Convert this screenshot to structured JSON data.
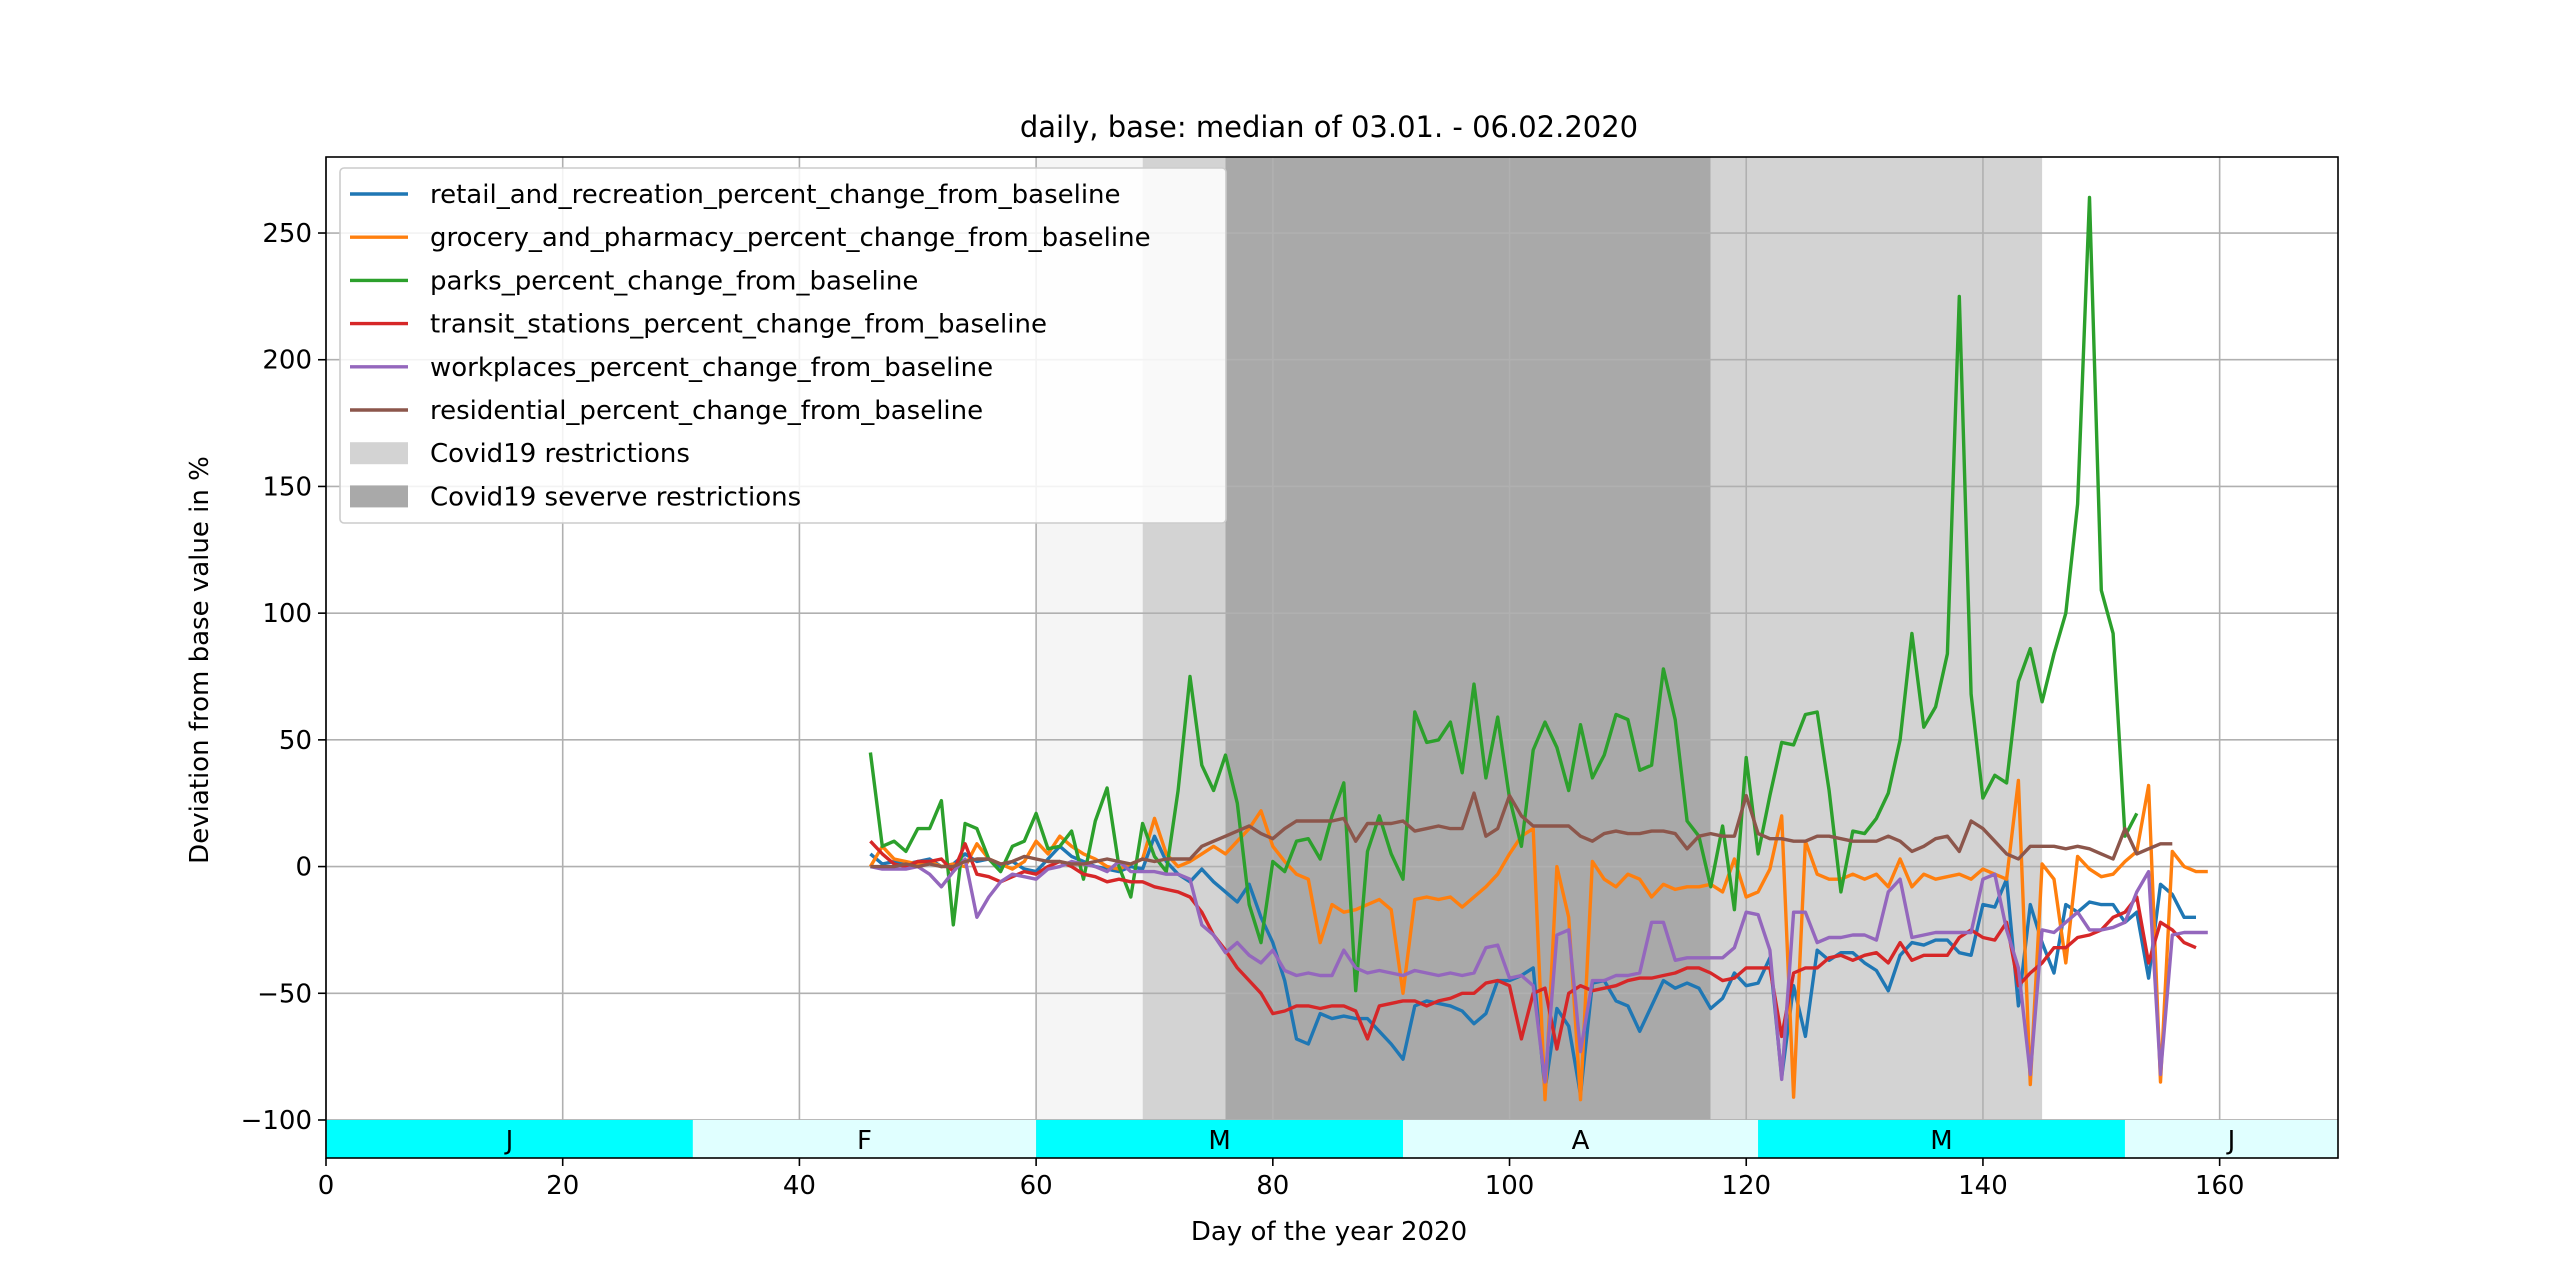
{
  "chart_data": {
    "type": "line",
    "title": "daily, base: median of 03.01. - 06.02.2020",
    "xlabel": "Day of the year 2020",
    "ylabel": "Deviation from base value in %",
    "xlim": [
      0,
      170
    ],
    "ylim": [
      -115,
      280
    ],
    "xticks": [
      0,
      20,
      40,
      60,
      80,
      100,
      120,
      140,
      160
    ],
    "yticks": [
      -100,
      -50,
      0,
      50,
      100,
      150,
      200,
      250
    ],
    "ytick_labels": [
      "−100",
      "−50",
      "0",
      "50",
      "100",
      "150",
      "200",
      "250"
    ],
    "grid": true,
    "legend_position": "top-left",
    "x_start": 46,
    "x_end": 157,
    "series": [
      {
        "name": "retail_and_recreation_percent_change_from_baseline",
        "color": "#1f77b4",
        "values": [
          5,
          1,
          2,
          1,
          2,
          3,
          0,
          1,
          5,
          2,
          3,
          0,
          2,
          -1,
          -2,
          3,
          8,
          4,
          2,
          0,
          -1,
          -2,
          0,
          -1,
          12,
          2,
          -3,
          -6,
          -1,
          -6,
          -10,
          -14,
          -7,
          -20,
          -30,
          -45,
          -68,
          -70,
          -58,
          -60,
          -59,
          -60,
          -60,
          -65,
          -70,
          -76,
          -55,
          -53,
          -54,
          -55,
          -57,
          -62,
          -58,
          -45,
          -45,
          -43,
          -40,
          -88,
          -56,
          -63,
          -90,
          -46,
          -45,
          -53,
          -55,
          -65,
          -55,
          -45,
          -48,
          -46,
          -48,
          -56,
          -52,
          -42,
          -47,
          -46,
          -36,
          -83,
          -47,
          -67,
          -33,
          -37,
          -34,
          -34,
          -38,
          -41,
          -49,
          -35,
          -30,
          -31,
          -29,
          -29,
          -34,
          -35,
          -15,
          -16,
          -5,
          -55,
          -15,
          -30,
          -42,
          -15,
          -18,
          -14,
          -15,
          -15,
          -22,
          -18,
          -44,
          -7,
          -11,
          -20,
          -20
        ]
      },
      {
        "name": "grocery_and_pharmacy_percent_change_from_baseline",
        "color": "#ff7f0e",
        "values": [
          0,
          8,
          3,
          2,
          1,
          2,
          0,
          1,
          0,
          9,
          3,
          1,
          -1,
          2,
          10,
          5,
          12,
          8,
          5,
          3,
          0,
          -1,
          1,
          3,
          19,
          5,
          0,
          2,
          5,
          8,
          5,
          10,
          15,
          22,
          8,
          2,
          -3,
          -5,
          -30,
          -15,
          -18,
          -17,
          -15,
          -13,
          -17,
          -50,
          -13,
          -12,
          -13,
          -12,
          -16,
          -12,
          -8,
          -3,
          5,
          12,
          15,
          -92,
          0,
          -20,
          -92,
          2,
          -5,
          -8,
          -3,
          -5,
          -12,
          -7,
          -9,
          -8,
          -8,
          -7,
          -10,
          3,
          -12,
          -10,
          -1,
          20,
          -91,
          10,
          -3,
          -5,
          -5,
          -3,
          -5,
          -3,
          -8,
          3,
          -8,
          -3,
          -5,
          -4,
          -3,
          -5,
          -1,
          -3,
          -5,
          34,
          -86,
          1,
          -5,
          -38,
          4,
          -1,
          -4,
          -3,
          2,
          6,
          32,
          -85,
          6,
          0,
          -2,
          -2
        ]
      },
      {
        "name": "parks_percent_change_from_baseline",
        "color": "#2ca02c",
        "values": [
          45,
          8,
          10,
          6,
          15,
          15,
          26,
          -23,
          17,
          15,
          3,
          -2,
          8,
          10,
          21,
          7,
          8,
          14,
          -5,
          18,
          31,
          0,
          -12,
          17,
          4,
          -2,
          30,
          75,
          40,
          30,
          44,
          25,
          -15,
          -30,
          2,
          -2,
          10,
          11,
          3,
          20,
          33,
          -49,
          6,
          20,
          5,
          -5,
          61,
          49,
          50,
          57,
          37,
          72,
          35,
          59,
          27,
          8,
          46,
          57,
          47,
          30,
          56,
          35,
          44,
          60,
          58,
          38,
          40,
          78,
          58,
          18,
          12,
          -8,
          16,
          -17,
          43,
          5,
          28,
          49,
          48,
          60,
          61,
          30,
          -10,
          14,
          13,
          19,
          29,
          50,
          92,
          55,
          63,
          84,
          225,
          68,
          27,
          36,
          33,
          73,
          86,
          65,
          84,
          100,
          143,
          264,
          109,
          92,
          12,
          21
        ]
      },
      {
        "name": "transit_stations_percent_change_from_baseline",
        "color": "#d62728",
        "values": [
          10,
          5,
          1,
          0,
          2,
          2,
          3,
          -2,
          9,
          -3,
          -4,
          -6,
          -4,
          -2,
          -3,
          0,
          2,
          0,
          -3,
          -4,
          -6,
          -5,
          -6,
          -6,
          -8,
          -9,
          -10,
          -12,
          -18,
          -27,
          -33,
          -40,
          -45,
          -50,
          -58,
          -57,
          -55,
          -55,
          -56,
          -55,
          -55,
          -57,
          -68,
          -55,
          -54,
          -53,
          -53,
          -55,
          -53,
          -52,
          -50,
          -50,
          -46,
          -45,
          -47,
          -68,
          -50,
          -48,
          -72,
          -50,
          -47,
          -49,
          -48,
          -47,
          -45,
          -44,
          -44,
          -43,
          -42,
          -40,
          -40,
          -42,
          -45,
          -44,
          -40,
          -40,
          -40,
          -67,
          -42,
          -40,
          -40,
          -36,
          -35,
          -37,
          -35,
          -34,
          -38,
          -30,
          -37,
          -35,
          -35,
          -35,
          -28,
          -25,
          -28,
          -29,
          -22,
          -47,
          -42,
          -38,
          -32,
          -32,
          -28,
          -27,
          -25,
          -20,
          -18,
          -12,
          -38,
          -22,
          -25,
          -30,
          -32
        ]
      },
      {
        "name": "workplaces_percent_change_from_baseline",
        "color": "#9467bd",
        "values": [
          0,
          -1,
          -1,
          -1,
          0,
          -3,
          -8,
          -2,
          3,
          -20,
          -12,
          -6,
          -3,
          -4,
          -5,
          -1,
          0,
          2,
          1,
          0,
          -2,
          2,
          -2,
          -2,
          -2,
          -3,
          -3,
          -5,
          -23,
          -27,
          -34,
          -30,
          -35,
          -38,
          -33,
          -41,
          -43,
          -42,
          -43,
          -43,
          -33,
          -40,
          -42,
          -41,
          -42,
          -43,
          -41,
          -42,
          -43,
          -42,
          -43,
          -42,
          -32,
          -31,
          -44,
          -43,
          -47,
          -85,
          -27,
          -25,
          -73,
          -45,
          -45,
          -43,
          -43,
          -42,
          -22,
          -22,
          -37,
          -36,
          -36,
          -36,
          -36,
          -32,
          -18,
          -19,
          -33,
          -84,
          -18,
          -18,
          -30,
          -28,
          -28,
          -27,
          -27,
          -29,
          -10,
          -5,
          -28,
          -27,
          -26,
          -26,
          -26,
          -26,
          -5,
          -3,
          -25,
          -40,
          -82,
          -25,
          -26,
          -22,
          -18,
          -25,
          -25,
          -24,
          -22,
          -10,
          -2,
          -82,
          -27,
          -26,
          -26,
          -26
        ]
      },
      {
        "name": "residential_percent_change_from_baseline",
        "color": "#8c564b",
        "values": [
          0,
          0,
          0,
          1,
          0,
          1,
          0,
          0,
          2,
          3,
          3,
          1,
          2,
          4,
          3,
          2,
          2,
          1,
          1,
          2,
          3,
          2,
          1,
          3,
          2,
          3,
          3,
          3,
          8,
          10,
          12,
          14,
          16,
          13,
          11,
          15,
          18,
          18,
          18,
          18,
          19,
          10,
          17,
          17,
          17,
          18,
          14,
          15,
          16,
          15,
          15,
          29,
          12,
          15,
          28,
          20,
          16,
          16,
          16,
          16,
          12,
          10,
          13,
          14,
          13,
          13,
          14,
          14,
          13,
          7,
          12,
          13,
          12,
          12,
          28,
          13,
          11,
          11,
          10,
          10,
          12,
          12,
          11,
          10,
          10,
          10,
          12,
          10,
          6,
          8,
          11,
          12,
          6,
          18,
          15,
          10,
          5,
          3,
          8,
          8,
          8,
          7,
          8,
          7,
          5,
          3,
          15,
          5,
          7,
          9,
          9
        ]
      }
    ],
    "shaded_regions": [
      {
        "label": "Covid19 restrictions",
        "color": "#d3d3d3",
        "x0": 69,
        "x1": 76
      },
      {
        "label": "Covid19 seververe restrictions",
        "color": "#a9a9a9",
        "x0": 76,
        "x1": 117
      },
      {
        "label": "Covid19 restrictions",
        "color": "#d3d3d3",
        "x0": 117,
        "x1": 145
      },
      {
        "label": "",
        "color": "#f5f5f5",
        "x0": 60,
        "x1": 69
      }
    ],
    "legend_patches": [
      {
        "label": "Covid19 restrictions",
        "color": "#d3d3d3"
      },
      {
        "label": "Covid19 severve restrictions",
        "color": "#a9a9a9"
      }
    ],
    "month_bands": [
      {
        "label": "J",
        "x0": 0,
        "x1": 31,
        "color": "#00ffff"
      },
      {
        "label": "F",
        "x0": 31,
        "x1": 60,
        "color": "#e0ffff"
      },
      {
        "label": "M",
        "x0": 60,
        "x1": 91,
        "color": "#00ffff"
      },
      {
        "label": "A",
        "x0": 91,
        "x1": 121,
        "color": "#e0ffff"
      },
      {
        "label": "M",
        "x0": 121,
        "x1": 152,
        "color": "#00ffff"
      },
      {
        "label": "J",
        "x0": 152,
        "x1": 170,
        "color": "#e0ffff"
      }
    ],
    "month_band_yrange": [
      -115,
      -100
    ]
  }
}
